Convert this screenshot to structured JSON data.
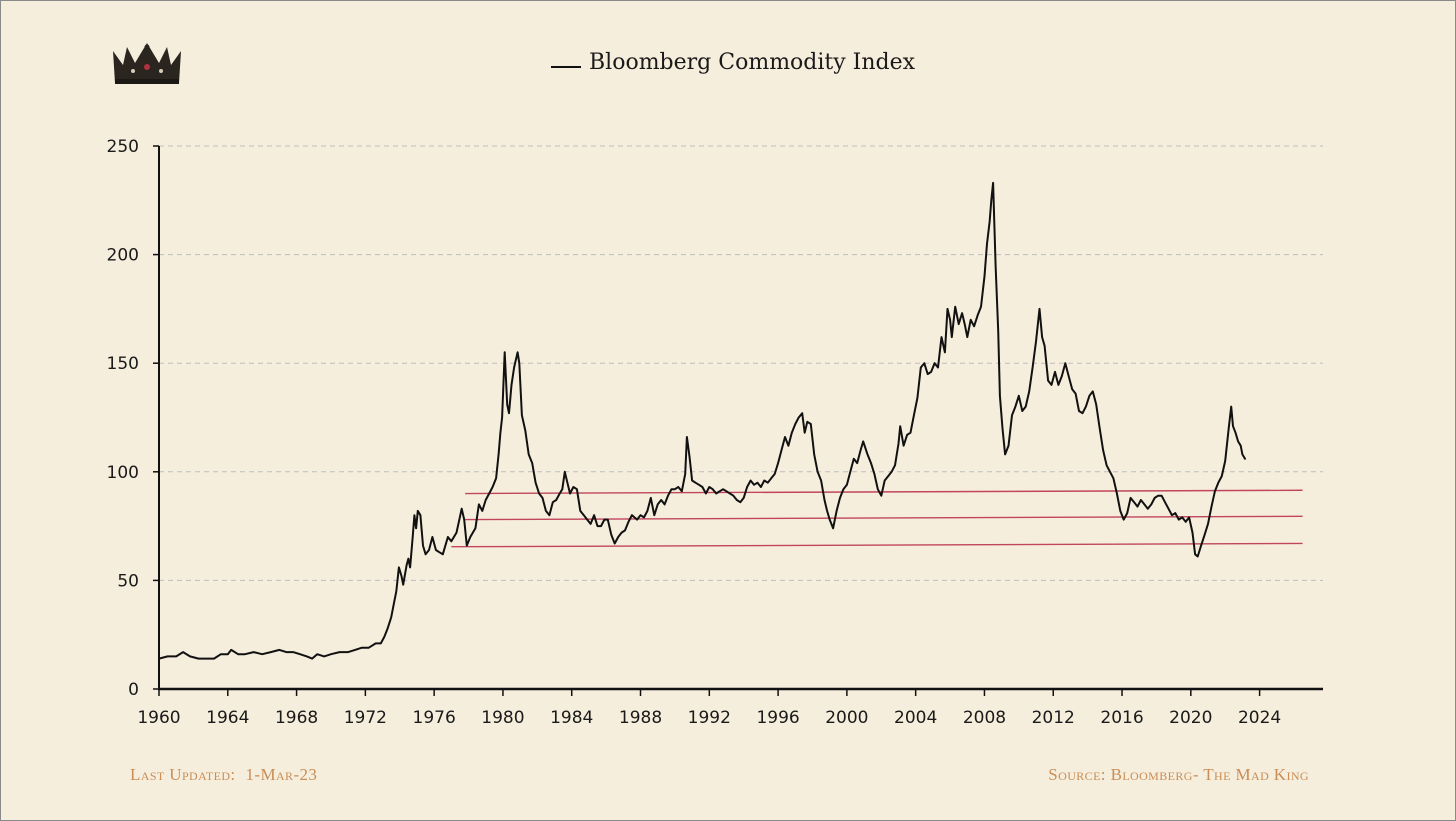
{
  "footer": {
    "last_updated_label": "Last Updated:",
    "last_updated_value": "1-Mar-23",
    "source": "Source: Bloomberg- The Mad King"
  },
  "colors": {
    "background": "#f6eedd",
    "series": "#111111",
    "support_lines": "#c0455d",
    "grid": "#bdbdbd",
    "footer_text": "#c98d55"
  },
  "logo": {
    "icon": "crown-icon"
  },
  "chart_data": {
    "type": "line",
    "title": "Bloomberg Commodity Index",
    "xlabel": "",
    "ylabel": "",
    "xlim": [
      1960,
      2026
    ],
    "ylim": [
      0,
      250
    ],
    "x_ticks": [
      1960,
      1964,
      1968,
      1972,
      1976,
      1980,
      1984,
      1988,
      1992,
      1996,
      2000,
      2004,
      2008,
      2012,
      2016,
      2020,
      2024
    ],
    "y_ticks": [
      0,
      50,
      100,
      150,
      200,
      250
    ],
    "grid": "horizontal dashed",
    "legend": "top-center",
    "series": [
      {
        "name": "Bloomberg Commodity Index",
        "points": [
          [
            1960.0,
            14
          ],
          [
            1960.5,
            15
          ],
          [
            1961.0,
            15
          ],
          [
            1961.4,
            17
          ],
          [
            1961.8,
            15
          ],
          [
            1962.3,
            14
          ],
          [
            1962.8,
            14
          ],
          [
            1963.2,
            14
          ],
          [
            1963.6,
            16
          ],
          [
            1964.0,
            16
          ],
          [
            1964.2,
            18
          ],
          [
            1964.6,
            16
          ],
          [
            1965.0,
            16
          ],
          [
            1965.5,
            17
          ],
          [
            1966.0,
            16
          ],
          [
            1966.5,
            17
          ],
          [
            1967.0,
            18
          ],
          [
            1967.4,
            17
          ],
          [
            1967.8,
            17
          ],
          [
            1968.2,
            16
          ],
          [
            1968.6,
            15
          ],
          [
            1968.9,
            14
          ],
          [
            1969.2,
            16
          ],
          [
            1969.6,
            15
          ],
          [
            1970.0,
            16
          ],
          [
            1970.5,
            17
          ],
          [
            1971.0,
            17
          ],
          [
            1971.4,
            18
          ],
          [
            1971.8,
            19
          ],
          [
            1972.2,
            19
          ],
          [
            1972.6,
            21
          ],
          [
            1972.9,
            21
          ],
          [
            1973.1,
            24
          ],
          [
            1973.3,
            28
          ],
          [
            1973.5,
            33
          ],
          [
            1973.6,
            37
          ],
          [
            1973.8,
            45
          ],
          [
            1973.95,
            56
          ],
          [
            1974.1,
            52
          ],
          [
            1974.2,
            48
          ],
          [
            1974.4,
            57
          ],
          [
            1974.5,
            60
          ],
          [
            1974.6,
            56
          ],
          [
            1974.75,
            70
          ],
          [
            1974.85,
            80
          ],
          [
            1974.95,
            74
          ],
          [
            1975.05,
            82
          ],
          [
            1975.2,
            80
          ],
          [
            1975.35,
            66
          ],
          [
            1975.5,
            62
          ],
          [
            1975.7,
            64
          ],
          [
            1975.9,
            70
          ],
          [
            1976.1,
            64
          ],
          [
            1976.3,
            63
          ],
          [
            1976.5,
            62
          ],
          [
            1976.8,
            70
          ],
          [
            1977.0,
            68
          ],
          [
            1977.3,
            72
          ],
          [
            1977.6,
            83
          ],
          [
            1977.75,
            78
          ],
          [
            1977.9,
            66
          ],
          [
            1978.1,
            70
          ],
          [
            1978.4,
            74
          ],
          [
            1978.6,
            85
          ],
          [
            1978.8,
            82
          ],
          [
            1979.0,
            87
          ],
          [
            1979.2,
            90
          ],
          [
            1979.4,
            93
          ],
          [
            1979.6,
            97
          ],
          [
            1979.75,
            108
          ],
          [
            1979.85,
            118
          ],
          [
            1979.95,
            125
          ],
          [
            1980.1,
            155
          ],
          [
            1980.25,
            131
          ],
          [
            1980.35,
            127
          ],
          [
            1980.5,
            140
          ],
          [
            1980.65,
            148
          ],
          [
            1980.85,
            155
          ],
          [
            1980.95,
            150
          ],
          [
            1981.1,
            126
          ],
          [
            1981.3,
            119
          ],
          [
            1981.5,
            108
          ],
          [
            1981.7,
            104
          ],
          [
            1981.9,
            95
          ],
          [
            1982.1,
            90
          ],
          [
            1982.3,
            88
          ],
          [
            1982.5,
            82
          ],
          [
            1982.7,
            80
          ],
          [
            1982.9,
            86
          ],
          [
            1983.1,
            87
          ],
          [
            1983.3,
            90
          ],
          [
            1983.45,
            92
          ],
          [
            1983.6,
            100
          ],
          [
            1983.75,
            95
          ],
          [
            1983.9,
            90
          ],
          [
            1984.1,
            93
          ],
          [
            1984.3,
            92
          ],
          [
            1984.5,
            82
          ],
          [
            1984.7,
            80
          ],
          [
            1984.9,
            78
          ],
          [
            1985.1,
            76
          ],
          [
            1985.3,
            80
          ],
          [
            1985.5,
            75
          ],
          [
            1985.7,
            75
          ],
          [
            1985.9,
            78
          ],
          [
            1986.1,
            78
          ],
          [
            1986.3,
            71
          ],
          [
            1986.5,
            67
          ],
          [
            1986.7,
            70
          ],
          [
            1986.9,
            72
          ],
          [
            1987.1,
            73
          ],
          [
            1987.3,
            77
          ],
          [
            1987.5,
            80
          ],
          [
            1987.8,
            78
          ],
          [
            1988.0,
            80
          ],
          [
            1988.2,
            79
          ],
          [
            1988.4,
            82
          ],
          [
            1988.6,
            88
          ],
          [
            1988.8,
            80
          ],
          [
            1989.0,
            85
          ],
          [
            1989.2,
            87
          ],
          [
            1989.4,
            85
          ],
          [
            1989.6,
            89
          ],
          [
            1989.8,
            92
          ],
          [
            1990.0,
            92
          ],
          [
            1990.2,
            93
          ],
          [
            1990.4,
            91
          ],
          [
            1990.6,
            99
          ],
          [
            1990.7,
            116
          ],
          [
            1990.85,
            107
          ],
          [
            1991.0,
            96
          ],
          [
            1991.2,
            95
          ],
          [
            1991.4,
            94
          ],
          [
            1991.6,
            93
          ],
          [
            1991.8,
            90
          ],
          [
            1992.0,
            93
          ],
          [
            1992.2,
            92
          ],
          [
            1992.4,
            90
          ],
          [
            1992.6,
            91
          ],
          [
            1992.8,
            92
          ],
          [
            1993.0,
            91
          ],
          [
            1993.2,
            90
          ],
          [
            1993.4,
            89
          ],
          [
            1993.6,
            87
          ],
          [
            1993.8,
            86
          ],
          [
            1994.0,
            88
          ],
          [
            1994.2,
            93
          ],
          [
            1994.4,
            96
          ],
          [
            1994.6,
            94
          ],
          [
            1994.8,
            95
          ],
          [
            1995.0,
            93
          ],
          [
            1995.2,
            96
          ],
          [
            1995.4,
            95
          ],
          [
            1995.6,
            97
          ],
          [
            1995.8,
            99
          ],
          [
            1996.0,
            104
          ],
          [
            1996.2,
            110
          ],
          [
            1996.4,
            116
          ],
          [
            1996.6,
            112
          ],
          [
            1996.8,
            118
          ],
          [
            1997.0,
            122
          ],
          [
            1997.2,
            125
          ],
          [
            1997.4,
            127
          ],
          [
            1997.55,
            118
          ],
          [
            1997.7,
            123
          ],
          [
            1997.9,
            122
          ],
          [
            1998.1,
            108
          ],
          [
            1998.3,
            100
          ],
          [
            1998.5,
            96
          ],
          [
            1998.7,
            87
          ],
          [
            1998.85,
            82
          ],
          [
            1999.0,
            78
          ],
          [
            1999.2,
            74
          ],
          [
            1999.4,
            82
          ],
          [
            1999.6,
            88
          ],
          [
            1999.8,
            92
          ],
          [
            2000.0,
            94
          ],
          [
            2000.2,
            100
          ],
          [
            2000.4,
            106
          ],
          [
            2000.6,
            104
          ],
          [
            2000.8,
            110
          ],
          [
            2000.95,
            114
          ],
          [
            2001.2,
            108
          ],
          [
            2001.4,
            104
          ],
          [
            2001.6,
            99
          ],
          [
            2001.8,
            92
          ],
          [
            2002.0,
            89
          ],
          [
            2002.2,
            96
          ],
          [
            2002.4,
            98
          ],
          [
            2002.6,
            100
          ],
          [
            2002.8,
            103
          ],
          [
            2003.0,
            113
          ],
          [
            2003.1,
            121
          ],
          [
            2003.3,
            112
          ],
          [
            2003.5,
            117
          ],
          [
            2003.7,
            118
          ],
          [
            2003.9,
            126
          ],
          [
            2004.1,
            134
          ],
          [
            2004.3,
            148
          ],
          [
            2004.5,
            150
          ],
          [
            2004.7,
            145
          ],
          [
            2004.9,
            146
          ],
          [
            2005.1,
            150
          ],
          [
            2005.3,
            148
          ],
          [
            2005.5,
            162
          ],
          [
            2005.7,
            155
          ],
          [
            2005.85,
            175
          ],
          [
            2006.0,
            170
          ],
          [
            2006.1,
            162
          ],
          [
            2006.3,
            176
          ],
          [
            2006.5,
            168
          ],
          [
            2006.7,
            173
          ],
          [
            2006.85,
            168
          ],
          [
            2007.0,
            162
          ],
          [
            2007.2,
            170
          ],
          [
            2007.4,
            167
          ],
          [
            2007.6,
            172
          ],
          [
            2007.8,
            176
          ],
          [
            2008.0,
            190
          ],
          [
            2008.15,
            205
          ],
          [
            2008.3,
            215
          ],
          [
            2008.4,
            225
          ],
          [
            2008.5,
            233
          ],
          [
            2008.65,
            195
          ],
          [
            2008.8,
            165
          ],
          [
            2008.9,
            135
          ],
          [
            2009.05,
            120
          ],
          [
            2009.2,
            108
          ],
          [
            2009.4,
            112
          ],
          [
            2009.6,
            126
          ],
          [
            2009.8,
            130
          ],
          [
            2010.0,
            135
          ],
          [
            2010.2,
            128
          ],
          [
            2010.4,
            130
          ],
          [
            2010.6,
            137
          ],
          [
            2010.8,
            148
          ],
          [
            2011.0,
            160
          ],
          [
            2011.2,
            175
          ],
          [
            2011.35,
            162
          ],
          [
            2011.5,
            158
          ],
          [
            2011.7,
            142
          ],
          [
            2011.9,
            140
          ],
          [
            2012.1,
            146
          ],
          [
            2012.3,
            140
          ],
          [
            2012.5,
            144
          ],
          [
            2012.7,
            150
          ],
          [
            2012.9,
            144
          ],
          [
            2013.1,
            138
          ],
          [
            2013.3,
            136
          ],
          [
            2013.5,
            128
          ],
          [
            2013.7,
            127
          ],
          [
            2013.9,
            130
          ],
          [
            2014.1,
            135
          ],
          [
            2014.3,
            137
          ],
          [
            2014.5,
            131
          ],
          [
            2014.7,
            120
          ],
          [
            2014.9,
            110
          ],
          [
            2015.1,
            103
          ],
          [
            2015.3,
            100
          ],
          [
            2015.5,
            97
          ],
          [
            2015.7,
            90
          ],
          [
            2015.9,
            82
          ],
          [
            2016.1,
            78
          ],
          [
            2016.3,
            81
          ],
          [
            2016.5,
            88
          ],
          [
            2016.7,
            86
          ],
          [
            2016.9,
            84
          ],
          [
            2017.1,
            87
          ],
          [
            2017.3,
            85
          ],
          [
            2017.5,
            83
          ],
          [
            2017.7,
            85
          ],
          [
            2017.9,
            88
          ],
          [
            2018.1,
            89
          ],
          [
            2018.3,
            89
          ],
          [
            2018.5,
            86
          ],
          [
            2018.7,
            83
          ],
          [
            2018.9,
            80
          ],
          [
            2019.1,
            81
          ],
          [
            2019.3,
            78
          ],
          [
            2019.5,
            79
          ],
          [
            2019.7,
            77
          ],
          [
            2019.9,
            79
          ],
          [
            2020.1,
            72
          ],
          [
            2020.25,
            62
          ],
          [
            2020.4,
            61
          ],
          [
            2020.6,
            66
          ],
          [
            2020.8,
            71
          ],
          [
            2021.0,
            76
          ],
          [
            2021.2,
            84
          ],
          [
            2021.4,
            91
          ],
          [
            2021.6,
            95
          ],
          [
            2021.8,
            98
          ],
          [
            2022.0,
            105
          ],
          [
            2022.2,
            120
          ],
          [
            2022.35,
            130
          ],
          [
            2022.45,
            121
          ],
          [
            2022.6,
            118
          ],
          [
            2022.75,
            114
          ],
          [
            2022.9,
            112
          ],
          [
            2023.0,
            108
          ],
          [
            2023.15,
            106
          ]
        ]
      }
    ],
    "support_lines": [
      {
        "x": [
          1977.8,
          2026.5
        ],
        "y": [
          90,
          91.5
        ]
      },
      {
        "x": [
          1977.8,
          2026.5
        ],
        "y": [
          78,
          79.5
        ]
      },
      {
        "x": [
          1977.0,
          2026.5
        ],
        "y": [
          65.5,
          67
        ]
      }
    ]
  }
}
